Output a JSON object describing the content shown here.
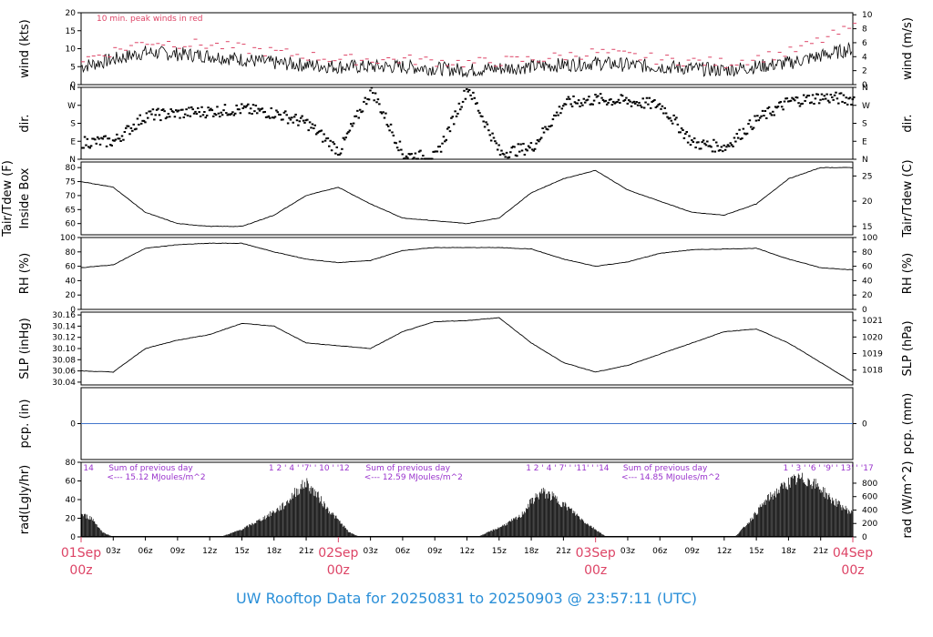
{
  "footer_title": "UW Rooftop Data for 20250831  to  20250903 @ 23:57:11  (UTC)",
  "colors": {
    "accent_red": "#dd4466",
    "line_blue": "#4477cc",
    "purple": "#9933cc",
    "title_blue": "#2a8fd8"
  },
  "chart_data": [
    {
      "id": "wind",
      "type": "line",
      "left_label": "wind (kts)",
      "right_label": "wind (m/s)",
      "left_ticks": [
        "0",
        "5",
        "10",
        "15",
        "20"
      ],
      "right_ticks": [
        "0",
        "2",
        "4",
        "6",
        "8",
        "10"
      ],
      "ylim": [
        0,
        20
      ],
      "annotation": "10 min. peak winds in red",
      "series": [
        {
          "x_hours": [
            0,
            6,
            12,
            18,
            24,
            30,
            36,
            42,
            48,
            54,
            60,
            66,
            72
          ],
          "values": [
            5,
            9,
            8,
            6,
            5,
            5,
            4,
            5,
            6,
            5,
            4,
            6,
            10
          ]
        },
        {
          "name": "10 min. peak winds",
          "x_hours": [
            0,
            6,
            12,
            18,
            24,
            30,
            36,
            42,
            48,
            54,
            60,
            66,
            72
          ],
          "values": [
            7,
            12,
            11,
            9,
            7,
            7,
            6,
            7,
            9,
            7,
            6,
            9,
            16
          ]
        }
      ]
    },
    {
      "id": "dir",
      "type": "scatter",
      "left_label": "dir.",
      "right_label": "dir.",
      "left_ticks": [
        "N",
        "E",
        "S",
        "W",
        "N"
      ],
      "right_ticks": [
        "N",
        "E",
        "S",
        "W",
        "N"
      ],
      "ylim": [
        0,
        360
      ],
      "x_hours": [
        0,
        3,
        6,
        9,
        12,
        15,
        18,
        21,
        24,
        27,
        30,
        33,
        36,
        39,
        42,
        45,
        48,
        51,
        54,
        57,
        60,
        63,
        66,
        69,
        72
      ],
      "values": [
        85,
        90,
        220,
        230,
        240,
        250,
        230,
        180,
        40,
        350,
        20,
        10,
        360,
        30,
        60,
        280,
        300,
        290,
        270,
        80,
        60,
        200,
        290,
        310,
        300
      ]
    },
    {
      "id": "temp",
      "type": "line",
      "left_label": "Tair/Tdew (F)",
      "left_label2": "Inside Box",
      "right_label": "Tair/Tdew (C)",
      "left_ticks": [
        "60",
        "65",
        "70",
        "75",
        "80"
      ],
      "right_ticks": [
        "15",
        "20",
        "25"
      ],
      "ylim": [
        56,
        82
      ],
      "x_hours": [
        0,
        3,
        6,
        9,
        12,
        15,
        18,
        21,
        24,
        27,
        30,
        33,
        36,
        39,
        42,
        45,
        48,
        51,
        54,
        57,
        60,
        63,
        66,
        69,
        72
      ],
      "values": [
        75,
        73,
        64,
        60,
        59,
        59,
        63,
        70,
        73,
        67,
        62,
        61,
        60,
        62,
        71,
        76,
        79,
        72,
        68,
        64,
        63,
        67,
        76,
        80,
        80
      ]
    },
    {
      "id": "rh",
      "type": "line",
      "left_label": "RH (%)",
      "right_label": "RH (%)",
      "left_ticks": [
        "0",
        "20",
        "40",
        "60",
        "80",
        "100"
      ],
      "right_ticks": [
        "0",
        "20",
        "40",
        "60",
        "80",
        "100"
      ],
      "ylim": [
        0,
        100
      ],
      "x_hours": [
        0,
        3,
        6,
        9,
        12,
        15,
        18,
        21,
        24,
        27,
        30,
        33,
        36,
        39,
        42,
        45,
        48,
        51,
        54,
        57,
        60,
        63,
        66,
        69,
        72
      ],
      "values": [
        58,
        62,
        85,
        90,
        92,
        92,
        80,
        70,
        65,
        68,
        82,
        86,
        86,
        86,
        84,
        70,
        60,
        66,
        78,
        83,
        84,
        85,
        70,
        58,
        55
      ]
    },
    {
      "id": "slp",
      "type": "line",
      "left_label": "SLP (inHg)",
      "right_label": "SLP (hPa)",
      "left_ticks": [
        "30.04",
        "30.06",
        "30.08",
        "30.10",
        "30.12",
        "30.14",
        "30.16"
      ],
      "right_ticks": [
        "1018",
        "1019",
        "1020",
        "1021"
      ],
      "ylim": [
        30.035,
        30.165
      ],
      "x_hours": [
        0,
        3,
        6,
        9,
        12,
        15,
        18,
        21,
        24,
        27,
        30,
        33,
        36,
        39,
        42,
        45,
        48,
        51,
        54,
        57,
        60,
        63,
        66,
        69,
        72
      ],
      "values": [
        30.06,
        30.058,
        30.1,
        30.115,
        30.125,
        30.145,
        30.14,
        30.11,
        30.105,
        30.1,
        30.13,
        30.148,
        30.15,
        30.155,
        30.11,
        30.075,
        30.058,
        30.07,
        30.09,
        30.11,
        30.13,
        30.135,
        30.11,
        30.075,
        30.04
      ]
    },
    {
      "id": "pcp",
      "type": "line",
      "left_label": "pcp. (in)",
      "right_label": "pcp. (mm)",
      "left_ticks": [
        "0"
      ],
      "right_ticks": [
        "0"
      ],
      "ylim": [
        -0.5,
        0.5
      ],
      "x_hours": [
        0,
        72
      ],
      "values": [
        0,
        0
      ]
    },
    {
      "id": "rad",
      "type": "area",
      "left_label": "rad(Lgly/hr)",
      "right_label": "rad (W/m^2)",
      "left_ticks": [
        "0",
        "20",
        "40",
        "60",
        "80"
      ],
      "right_ticks": [
        "0",
        "200",
        "400",
        "600",
        "800"
      ],
      "ylim": [
        0,
        80
      ],
      "annotations": [
        {
          "day": 0,
          "line1": "Sum of previous day",
          "line2": "<--- 15.12 MJoules/m^2"
        },
        {
          "day": 1,
          "line1": "Sum of previous day",
          "line2": "<--- 12.59 MJoules/m^2"
        },
        {
          "day": 2,
          "line1": "Sum of previous day",
          "line2": "<--- 14.85 MJoules/m^2"
        }
      ],
      "hour_markers_text": [
        {
          "hour": 0.2,
          "text": "14"
        },
        {
          "hour": 17.5,
          "text": "1  2 ' 4 ' '7' ' 10 ' '12"
        },
        {
          "hour": 41.5,
          "text": "1  2 ' 4 ' 7' ' '11' ' '14"
        },
        {
          "hour": 65.5,
          "text": "1 ' 3 ' '6 ' '9' ' 13' ' '17"
        }
      ],
      "x_hours": [
        0,
        1,
        2,
        3,
        13,
        15,
        17,
        19,
        20,
        21,
        22,
        23,
        24,
        25,
        26,
        37,
        39,
        41,
        42,
        43,
        44,
        45,
        46,
        47,
        48,
        49,
        61,
        62,
        64,
        66,
        67,
        68,
        69,
        70,
        72
      ],
      "values": [
        24,
        20,
        5,
        0,
        0,
        8,
        20,
        34,
        48,
        58,
        45,
        30,
        18,
        5,
        0,
        0,
        10,
        22,
        38,
        48,
        43,
        35,
        26,
        16,
        8,
        0,
        0,
        12,
        40,
        58,
        62,
        60,
        52,
        40,
        25
      ]
    }
  ],
  "x_axis": {
    "hour_ticks": [
      "03z",
      "06z",
      "09z",
      "12z",
      "15z",
      "18z",
      "21z",
      "03z",
      "06z",
      "09z",
      "12z",
      "15z",
      "18z",
      "21z",
      "03z",
      "06z",
      "09z",
      "12z",
      "15z",
      "18z",
      "21z"
    ],
    "day_labels": [
      {
        "line1": "01Sep",
        "line2": "00z"
      },
      {
        "line1": "02Sep",
        "line2": "00z"
      },
      {
        "line1": "03Sep",
        "line2": "00z"
      },
      {
        "line1": "04Sep",
        "line2": "00z"
      }
    ]
  }
}
